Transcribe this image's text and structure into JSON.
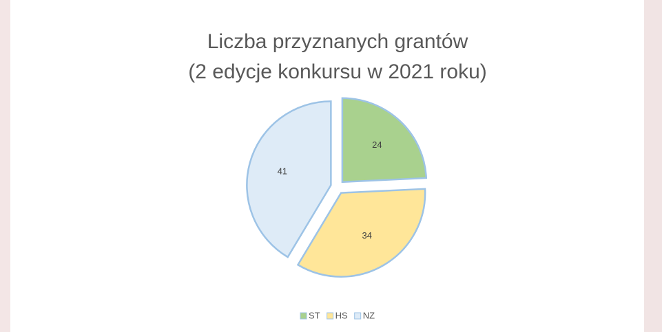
{
  "chart_data": {
    "type": "pie",
    "title": "Liczba przyznanych grantów",
    "subtitle": "(2 edycje konkursu w 2021 roku)",
    "categories": [
      "ST",
      "HS",
      "NZ"
    ],
    "values": [
      24,
      34,
      41
    ],
    "colors": [
      "#a9d18e",
      "#ffe699",
      "#deebf7"
    ],
    "legend": "bottom"
  }
}
